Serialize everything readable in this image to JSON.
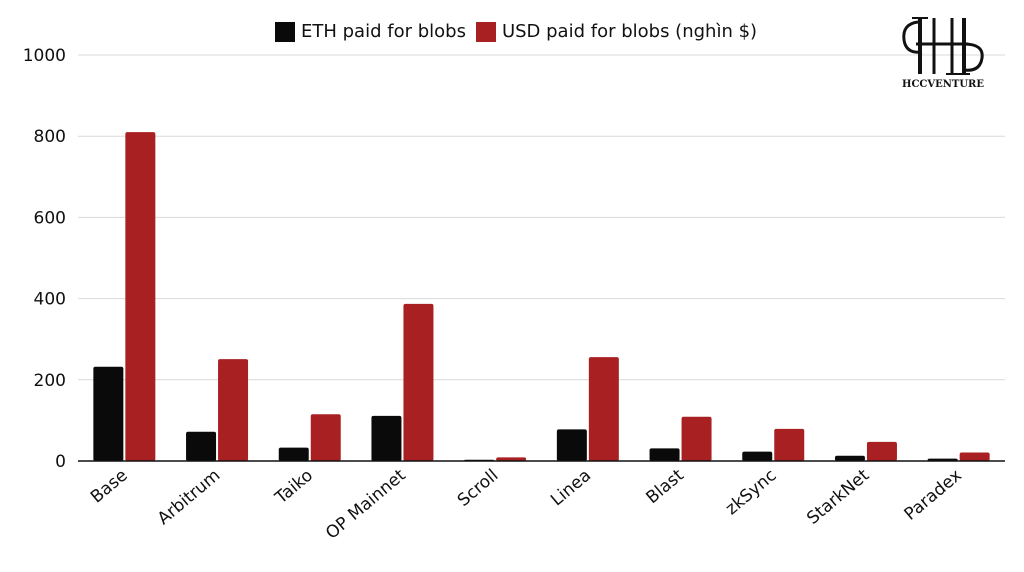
{
  "colors": {
    "eth": "#0a0a0a",
    "usd": "#a92022",
    "grid": "#d9d9d9",
    "axis": "#111111"
  },
  "logo": {
    "text": "HCCVENTURE"
  },
  "chart_data": {
    "type": "bar",
    "categories": [
      "Base",
      "Arbitrum",
      "Taiko",
      "OP Mainnet",
      "Scroll",
      "Linea",
      "Blast",
      "zkSync",
      "StarkNet",
      "Paradex"
    ],
    "series": [
      {
        "name": "ETH paid for blobs",
        "values": [
          232,
          72,
          33,
          111,
          3,
          78,
          31,
          23,
          13,
          6
        ]
      },
      {
        "name": "USD paid for blobs (nghìn $)",
        "values": [
          810,
          251,
          115,
          387,
          9,
          256,
          109,
          79,
          47,
          21
        ]
      }
    ],
    "yticks": [
      0,
      200,
      400,
      600,
      800,
      1000
    ],
    "ylim": [
      0,
      1000
    ],
    "grid": true,
    "legend_position": "top-center"
  }
}
